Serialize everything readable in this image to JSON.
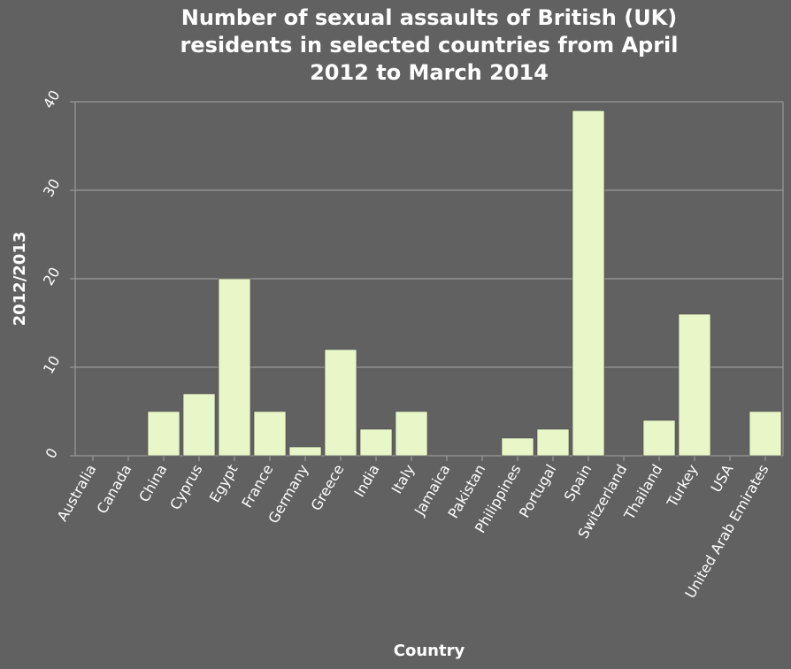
{
  "chart_data": {
    "type": "bar",
    "title": "Number of sexual assaults of British (UK) residents in selected countries from April 2012 to March 2014",
    "title_lines": [
      "Number of sexual assaults of British (UK)",
      "residents in selected countries from April",
      "2012 to March 2014"
    ],
    "xlabel": "Country",
    "ylabel": "2012/2013",
    "ylim": [
      0,
      40
    ],
    "yticks": [
      0,
      10,
      20,
      30,
      40
    ],
    "grid": true,
    "categories": [
      "Australia",
      "Canada",
      "China",
      "Cyprus",
      "Egypt",
      "France",
      "Germany",
      "Greece",
      "India",
      "Italy",
      "Jamaica",
      "Pakistan",
      "Philippines",
      "Portugal",
      "Spain",
      "Switzerland",
      "Thailand",
      "Turkey",
      "USA",
      "United Arab Emirates"
    ],
    "values": [
      0,
      0,
      5,
      7,
      20,
      5,
      1,
      12,
      3,
      5,
      0,
      0,
      2,
      3,
      39,
      0,
      4,
      16,
      0,
      5
    ],
    "colors": {
      "background": "#616161",
      "bar": "#e8f6c8",
      "bar_stroke": "#4a4a4a",
      "grid": "#9a9a9a",
      "text": "#ffffff"
    }
  }
}
